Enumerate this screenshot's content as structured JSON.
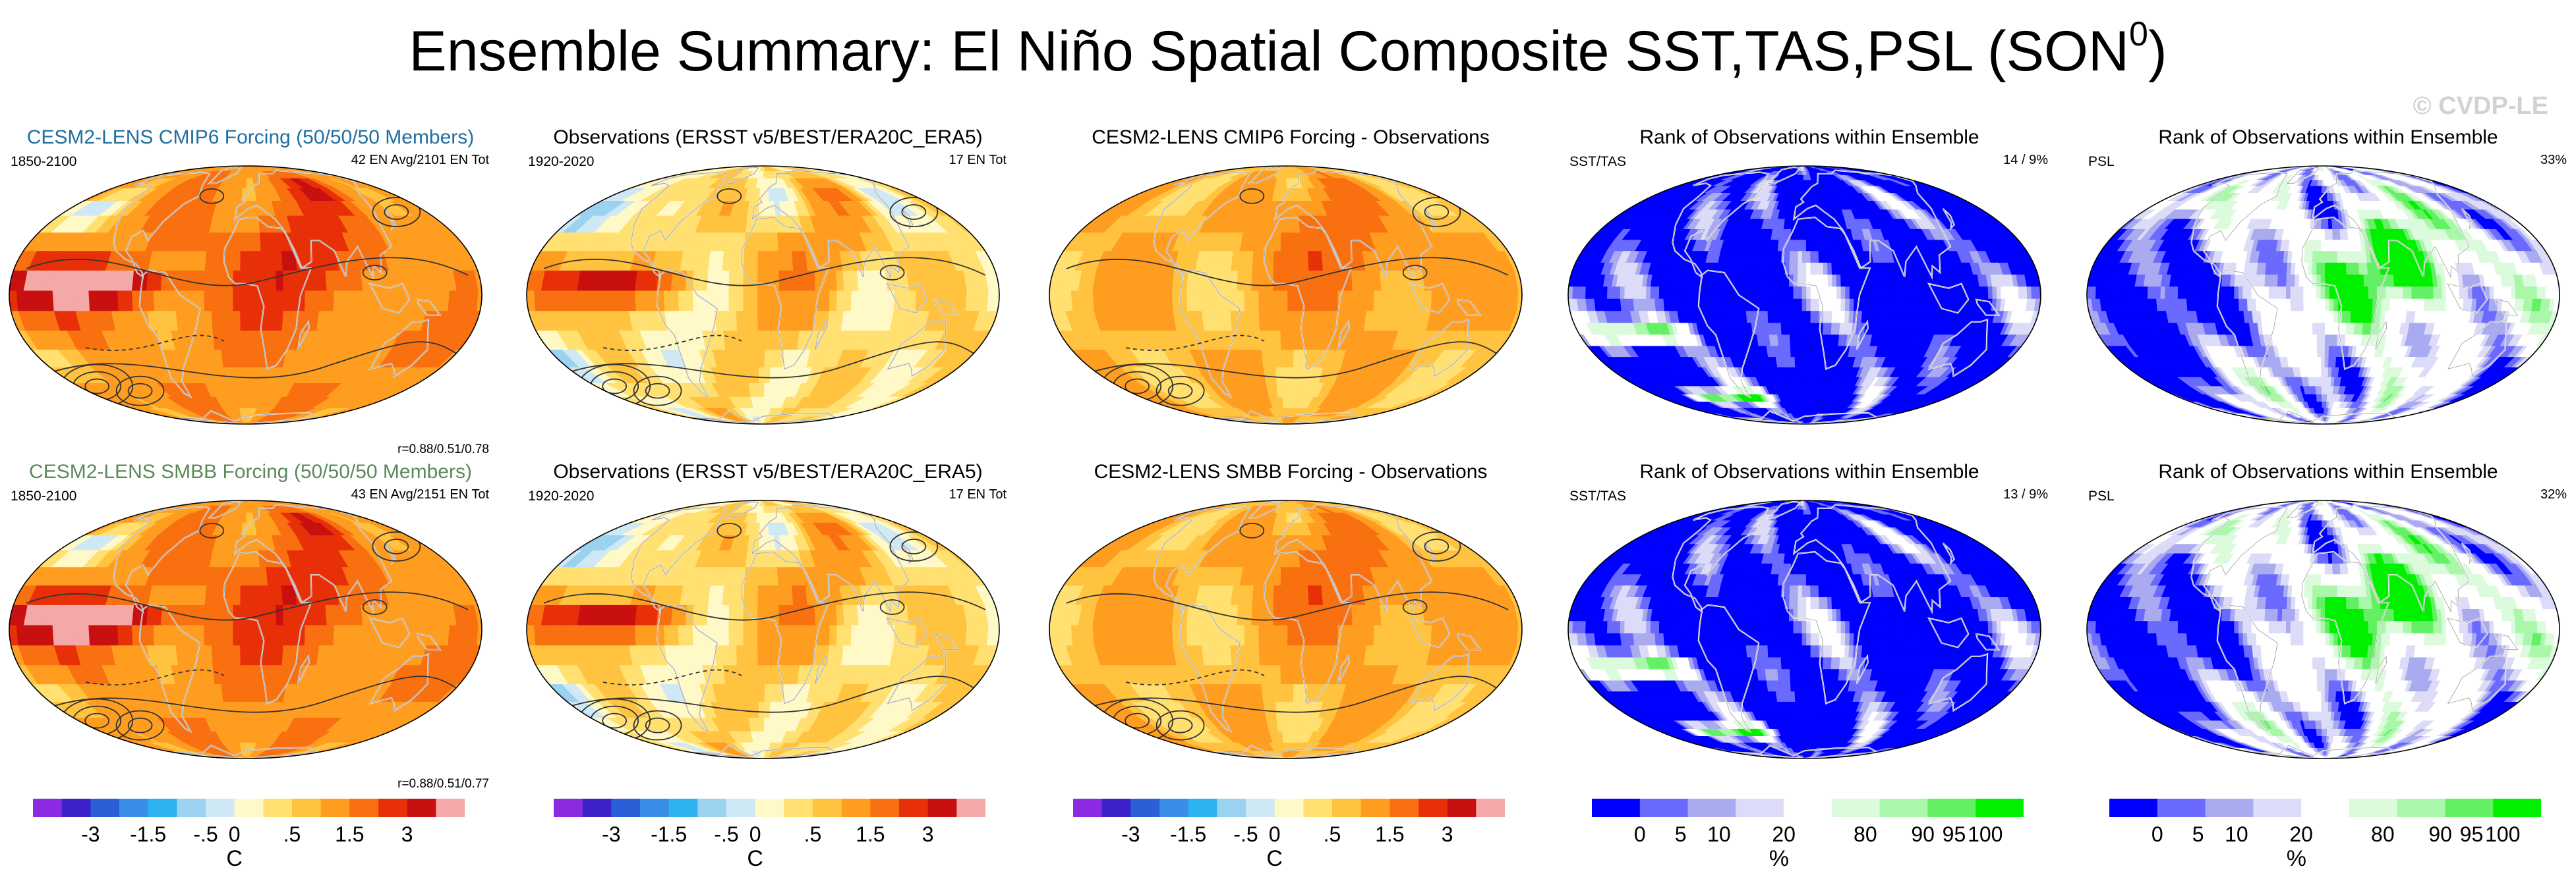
{
  "title": "Ensemble Summary: El Niño Spatial Composite SST,TAS,PSL (SON",
  "title_sup": "0",
  "title_close": ")",
  "watermark": "© CVDP-LE",
  "rows": [
    {
      "panels": [
        {
          "title": "CESM2-LENS CMIP6 Forcing (50/50/50 Members)",
          "left": "1850-2100",
          "right": "42 EN Avg/2101 EN Tot",
          "r": "r=0.88/0.51/0.78",
          "kind": "anom",
          "seed": 11
        },
        {
          "title": "Observations (ERSST v5/BEST/ERA20C_ERA5)",
          "left": "1920-2020",
          "right": "17 EN Tot",
          "r": "",
          "kind": "obs",
          "seed": 23
        },
        {
          "title": "CESM2-LENS CMIP6 Forcing - Observations",
          "left": "",
          "right": "",
          "r": "",
          "kind": "diff",
          "seed": 37
        },
        {
          "title": "Rank of Observations within Ensemble",
          "left": "SST/TAS",
          "right": "14 /   9%",
          "r": "",
          "kind": "rank",
          "seed": 41
        },
        {
          "title": "Rank of Observations within Ensemble",
          "left": "PSL",
          "right": "33%",
          "r": "",
          "kind": "rankpsl",
          "seed": 53
        }
      ]
    },
    {
      "panels": [
        {
          "title": "CESM2-LENS SMBB Forcing (50/50/50 Members)",
          "left": "1850-2100",
          "right": "43 EN Avg/2151 EN Tot",
          "r": "r=0.88/0.51/0.77",
          "kind": "anom",
          "seed": 13
        },
        {
          "title": "Observations (ERSST v5/BEST/ERA20C_ERA5)",
          "left": "1920-2020",
          "right": "17 EN Tot",
          "r": "",
          "kind": "obs",
          "seed": 23
        },
        {
          "title": "CESM2-LENS SMBB Forcing - Observations",
          "left": "",
          "right": "",
          "r": "",
          "kind": "diff",
          "seed": 39
        },
        {
          "title": "Rank of Observations within Ensemble",
          "left": "SST/TAS",
          "right": "13 /   9%",
          "r": "",
          "kind": "rank",
          "seed": 43
        },
        {
          "title": "Rank of Observations within Ensemble",
          "left": "PSL",
          "right": "32%",
          "r": "",
          "kind": "rankpsl",
          "seed": 59
        }
      ]
    }
  ],
  "colorbars": {
    "temp": {
      "colors": [
        "#8a2be2",
        "#3c22c8",
        "#2b5fd8",
        "#3b8ee8",
        "#2db4f0",
        "#9ad2f0",
        "#cfe8f5",
        "#fff9c8",
        "#ffe070",
        "#ffc340",
        "#ff9d20",
        "#f87010",
        "#e83008",
        "#c81010",
        "#f5a8a8"
      ],
      "labels": [
        "-3",
        "-1.5",
        "-.5",
        "0",
        ".5",
        "1.5",
        "3"
      ],
      "unit": "C"
    },
    "rank": {
      "colors": [
        "#0000ff",
        "#6a6aff",
        "#aaaaf0",
        "#dcdcf8",
        "#ffffff",
        "#dcfadc",
        "#aaf7aa",
        "#64f064",
        "#00f000"
      ],
      "labels": [
        "0",
        "5",
        "10",
        "20",
        "80",
        "90",
        "95",
        "100"
      ],
      "unit": "%"
    }
  },
  "chart_data": [
    {
      "type": "heatmap",
      "title": "CESM2-LENS CMIP6 Forcing (50/50/50 Members)",
      "variable": "SST/TAS composite anomaly with PSL contours",
      "units": "C",
      "period": "1850-2100",
      "pattern_correlation": [
        0.88,
        0.51,
        0.78
      ]
    },
    {
      "type": "heatmap",
      "title": "Observations (ERSST v5/BEST/ERA20C_ERA5)",
      "variable": "SST/TAS composite anomaly with PSL contours",
      "units": "C",
      "period": "1920-2020"
    },
    {
      "type": "heatmap",
      "title": "CESM2-LENS CMIP6 Forcing - Observations",
      "units": "C"
    },
    {
      "type": "heatmap",
      "title": "Rank of Observations within Ensemble",
      "variable": "SST/TAS",
      "units": "%"
    },
    {
      "type": "heatmap",
      "title": "Rank of Observations within Ensemble",
      "variable": "PSL",
      "units": "%"
    },
    {
      "type": "heatmap",
      "title": "CESM2-LENS SMBB Forcing (50/50/50 Members)",
      "variable": "SST/TAS composite anomaly with PSL contours",
      "units": "C",
      "period": "1850-2100",
      "pattern_correlation": [
        0.88,
        0.51,
        0.77
      ]
    },
    {
      "type": "heatmap",
      "title": "Observations (ERSST v5/BEST/ERA20C_ERA5)",
      "units": "C",
      "period": "1920-2020"
    },
    {
      "type": "heatmap",
      "title": "CESM2-LENS SMBB Forcing - Observations",
      "units": "C"
    },
    {
      "type": "heatmap",
      "title": "Rank of Observations within Ensemble",
      "variable": "SST/TAS",
      "units": "%"
    },
    {
      "type": "heatmap",
      "title": "Rank of Observations within Ensemble",
      "variable": "PSL",
      "units": "%"
    }
  ]
}
